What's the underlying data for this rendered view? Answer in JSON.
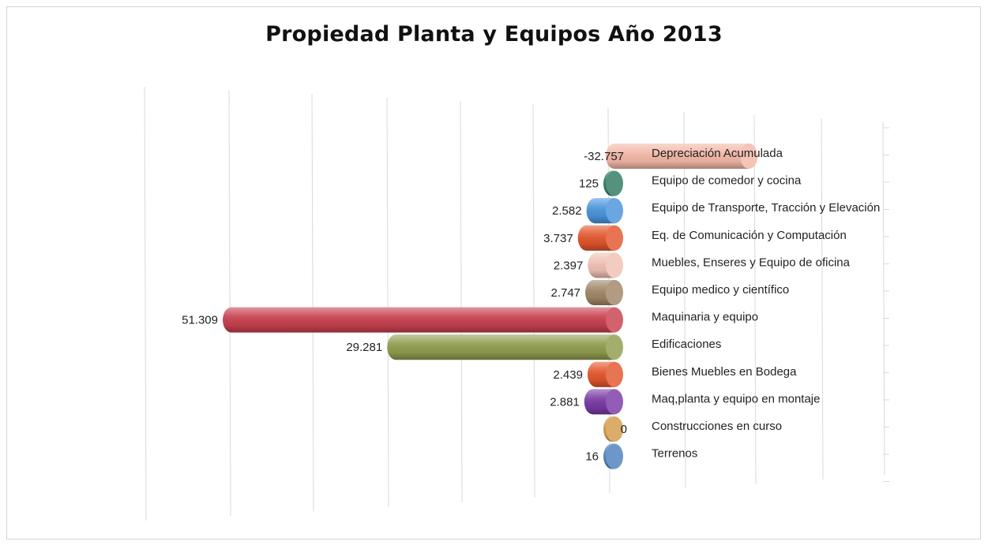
{
  "chart_data": {
    "type": "bar",
    "orientation": "horizontal",
    "style": "3d-cylinder",
    "title": "Propiedad Planta y Equipos Año 2013",
    "categories": [
      "Depreciación Acumulada",
      "Equipo de comedor y cocina",
      "Equipo de Transporte,  Tracción y Elevación",
      "Eq. de Comunicación y Computación",
      "Muebles, Enseres y Equipo de oficina",
      "Equipo medico y científico",
      "Maquinaria y equipo",
      "Edificaciones",
      "Bienes Muebles en Bodega",
      "Maq,planta y equipo en montaje",
      "Construcciones en curso",
      "Terrenos"
    ],
    "values": [
      -32757,
      125,
      2582,
      3737,
      2397,
      2747,
      51309,
      29281,
      2439,
      2881,
      0,
      16
    ],
    "value_labels": [
      "-32.757",
      "125",
      "2.582",
      "3.737",
      "2.397",
      "2.747",
      "51.309",
      "29.281",
      "2.439",
      "2.881",
      "0",
      "16"
    ],
    "colors": [
      "#f2b7a6",
      "#2f7b62",
      "#4a94dc",
      "#e2562c",
      "#f0c0b4",
      "#a08667",
      "#c8404e",
      "#8f9d4e",
      "#e2562c",
      "#7a3aa5",
      "#d49a4a",
      "#4e81bd"
    ],
    "grid": true,
    "legend": "none"
  }
}
